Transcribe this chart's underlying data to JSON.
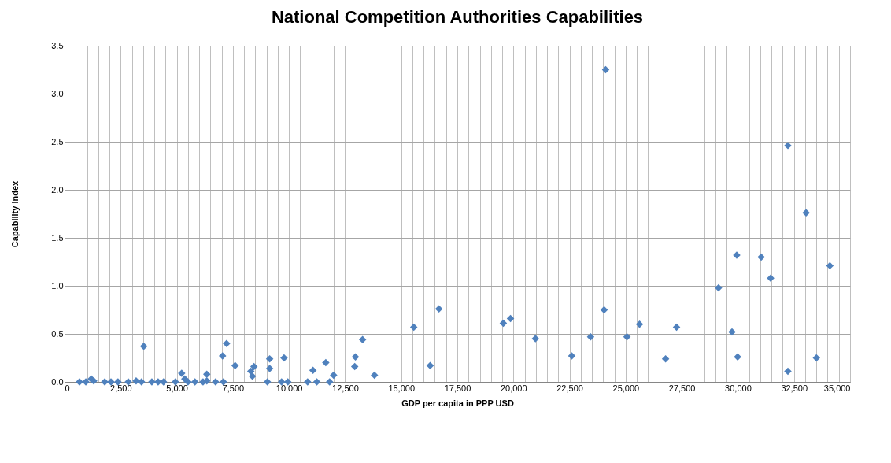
{
  "chart_data": {
    "type": "scatter",
    "title": "National Competition Authorities Capabilities",
    "xlabel": "GDP per capita in PPP USD",
    "ylabel": "Capability Index",
    "x": [
      666,
      950,
      1190,
      1300,
      1790,
      2070,
      2380,
      2840,
      3190,
      3430,
      3530,
      3890,
      4170,
      4410,
      4940,
      5220,
      5360,
      5500,
      5810,
      6170,
      6340,
      6340,
      6730,
      7080,
      7040,
      7220,
      7600,
      8300,
      8370,
      8440,
      9040,
      9140,
      9140,
      9780,
      9670,
      9950,
      10830,
      11070,
      11240,
      11640,
      11810,
      11990,
      12930,
      12960,
      13280,
      13810,
      15560,
      16290,
      16680,
      19550,
      19870,
      20980,
      22600,
      23440,
      24040,
      25060,
      25620,
      26780,
      27270,
      29140,
      29740,
      29950,
      29990,
      31040,
      31460,
      32230,
      33500,
      34100,
      24110,
      32230,
      33040
    ],
    "series": [
      {
        "color": "#4f81bd",
        "values": [
          0,
          0,
          0.03,
          0.01,
          0,
          0,
          0,
          0,
          0.01,
          0,
          0.37,
          0,
          0,
          0,
          0,
          0.09,
          0.03,
          0,
          0,
          0,
          0.08,
          0.01,
          0,
          0,
          0.27,
          0.4,
          0.17,
          0.11,
          0.06,
          0.16,
          0,
          0.24,
          0.14,
          0.25,
          0,
          0,
          0,
          0.12,
          0,
          0.2,
          0,
          0.07,
          0.16,
          0.26,
          0.44,
          0.07,
          0.57,
          0.17,
          0.76,
          0.61,
          0.66,
          0.45,
          0.27,
          0.47,
          0.75,
          0.47,
          0.6,
          0.24,
          0.57,
          0.98,
          0.52,
          1.32,
          0.26,
          1.3,
          1.08,
          0.11,
          0.25,
          1.21,
          3.25,
          2.46,
          1.76
        ]
      }
    ],
    "marker": "diamond",
    "grid": true,
    "xlim": [
      0,
      35000
    ],
    "xticks": [
      {
        "value": 0,
        "label": "0"
      },
      {
        "value": 500,
        "label": null
      },
      {
        "value": 1000,
        "label": null
      },
      {
        "value": 1500,
        "label": null
      },
      {
        "value": 2000,
        "label": null
      },
      {
        "value": 2500,
        "label": "2,500"
      },
      {
        "value": 3000,
        "label": null
      },
      {
        "value": 3500,
        "label": null
      },
      {
        "value": 4000,
        "label": null
      },
      {
        "value": 4500,
        "label": null
      },
      {
        "value": 5000,
        "label": "5,000"
      },
      {
        "value": 5500,
        "label": null
      },
      {
        "value": 6000,
        "label": null
      },
      {
        "value": 6500,
        "label": null
      },
      {
        "value": 7000,
        "label": null
      },
      {
        "value": 7500,
        "label": "7,500"
      },
      {
        "value": 8000,
        "label": null
      },
      {
        "value": 8500,
        "label": null
      },
      {
        "value": 9000,
        "label": null
      },
      {
        "value": 9500,
        "label": null
      },
      {
        "value": 10000,
        "label": "10,000"
      },
      {
        "value": 10500,
        "label": null
      },
      {
        "value": 11000,
        "label": null
      },
      {
        "value": 11500,
        "label": null
      },
      {
        "value": 12000,
        "label": null
      },
      {
        "value": 12500,
        "label": "12,500"
      },
      {
        "value": 13000,
        "label": null
      },
      {
        "value": 13500,
        "label": null
      },
      {
        "value": 14000,
        "label": null
      },
      {
        "value": 14500,
        "label": null
      },
      {
        "value": 15000,
        "label": "15,000"
      },
      {
        "value": 15500,
        "label": null
      },
      {
        "value": 16000,
        "label": null
      },
      {
        "value": 16500,
        "label": null
      },
      {
        "value": 17000,
        "label": null
      },
      {
        "value": 17500,
        "label": "17,500"
      },
      {
        "value": 18000,
        "label": null
      },
      {
        "value": 18500,
        "label": null
      },
      {
        "value": 19000,
        "label": null
      },
      {
        "value": 19500,
        "label": null
      },
      {
        "value": 20000,
        "label": "20,000"
      },
      {
        "value": 20500,
        "label": null
      },
      {
        "value": 21000,
        "label": null
      },
      {
        "value": 21500,
        "label": null
      },
      {
        "value": 22000,
        "label": null
      },
      {
        "value": 22500,
        "label": "22,500"
      },
      {
        "value": 23000,
        "label": null
      },
      {
        "value": 23500,
        "label": null
      },
      {
        "value": 24000,
        "label": null
      },
      {
        "value": 24500,
        "label": null
      },
      {
        "value": 25000,
        "label": "25,000"
      },
      {
        "value": 25500,
        "label": null
      },
      {
        "value": 26000,
        "label": null
      },
      {
        "value": 26500,
        "label": null
      },
      {
        "value": 27000,
        "label": null
      },
      {
        "value": 27500,
        "label": "27,500"
      },
      {
        "value": 28000,
        "label": null
      },
      {
        "value": 28500,
        "label": null
      },
      {
        "value": 29000,
        "label": null
      },
      {
        "value": 29500,
        "label": null
      },
      {
        "value": 30000,
        "label": "30,000"
      },
      {
        "value": 30500,
        "label": null
      },
      {
        "value": 31000,
        "label": null
      },
      {
        "value": 31500,
        "label": null
      },
      {
        "value": 32000,
        "label": null
      },
      {
        "value": 32500,
        "label": "32,500"
      },
      {
        "value": 33000,
        "label": null
      },
      {
        "value": 33500,
        "label": null
      },
      {
        "value": 34000,
        "label": null
      },
      {
        "value": 34500,
        "label": null
      },
      {
        "value": 35000,
        "label": "35,000"
      }
    ],
    "ylim": [
      0,
      3.5
    ],
    "yticks": [
      {
        "value": 0,
        "label": "0.0"
      },
      {
        "value": 0.5,
        "label": "0.5"
      },
      {
        "value": 1,
        "label": "1.0"
      },
      {
        "value": 1.5,
        "label": "1.5"
      },
      {
        "value": 2,
        "label": "2.0"
      },
      {
        "value": 2.5,
        "label": "2.5"
      },
      {
        "value": 3,
        "label": "3.0"
      },
      {
        "value": 3.5,
        "label": "3.5"
      }
    ]
  }
}
